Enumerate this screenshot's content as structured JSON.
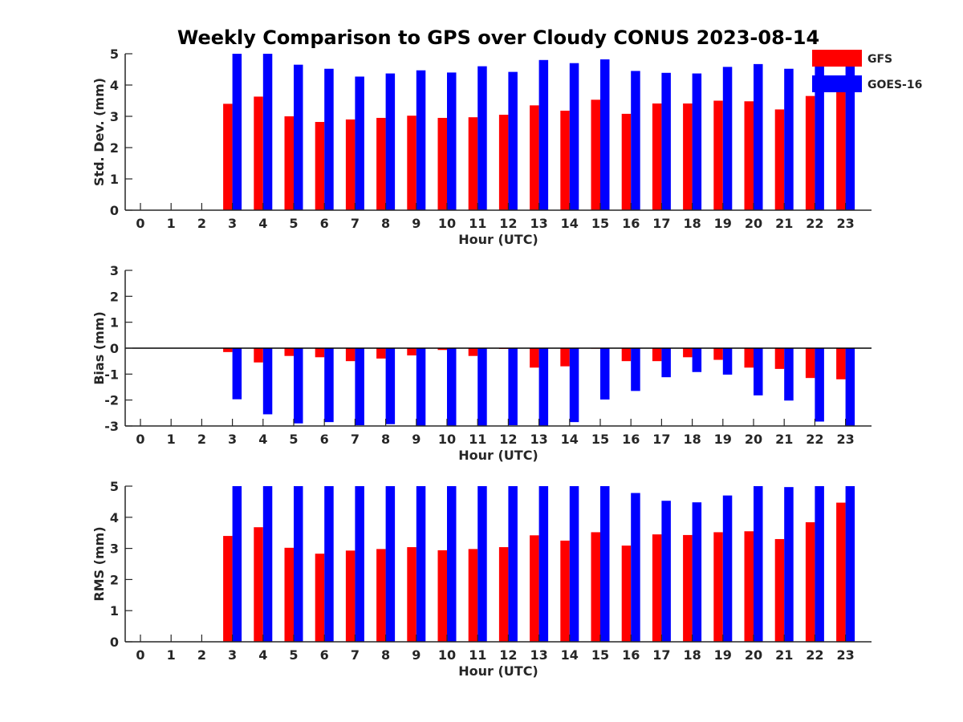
{
  "title": "Weekly Comparison to GPS over Cloudy CONUS 2023-08-14",
  "legend": {
    "placement": "top-right",
    "entries": [
      {
        "name": "GFS",
        "color": "#ff0000"
      },
      {
        "name": "GOES-16",
        "color": "#0000ff"
      }
    ]
  },
  "chart_data": [
    {
      "type": "bar",
      "title": "Weekly Comparison to GPS over Cloudy CONUS 2023-08-14",
      "xlabel": "Hour (UTC)",
      "ylabel": "Std. Dev. (mm)",
      "ylim": [
        0,
        5
      ],
      "yticks": [
        0,
        1,
        2,
        3,
        4,
        5
      ],
      "categories": [
        "0",
        "1",
        "2",
        "3",
        "4",
        "5",
        "6",
        "7",
        "8",
        "9",
        "10",
        "11",
        "12",
        "13",
        "14",
        "15",
        "16",
        "17",
        "18",
        "19",
        "20",
        "21",
        "22",
        "23"
      ],
      "series": [
        {
          "name": "GFS",
          "color": "#ff0000",
          "values": [
            0,
            0,
            0,
            3.4,
            3.63,
            3.0,
            2.82,
            2.9,
            2.95,
            3.02,
            2.95,
            2.97,
            3.05,
            3.35,
            3.18,
            3.53,
            3.08,
            3.41,
            3.41,
            3.5,
            3.48,
            3.22,
            3.65,
            3.8
          ]
        },
        {
          "name": "GOES-16",
          "color": "#0000ff",
          "values": [
            0,
            0,
            0,
            5.0,
            5.0,
            4.65,
            4.52,
            4.27,
            4.37,
            4.47,
            4.4,
            4.6,
            4.42,
            4.8,
            4.7,
            4.82,
            4.45,
            4.39,
            4.37,
            4.58,
            4.67,
            4.52,
            4.72,
            4.6
          ]
        }
      ],
      "grid": false
    },
    {
      "type": "bar",
      "xlabel": "Hour (UTC)",
      "ylabel": "Bias (mm)",
      "ylim": [
        -3,
        3
      ],
      "yticks": [
        -3,
        -2,
        -1,
        0,
        1,
        2,
        3
      ],
      "zero_line": true,
      "categories": [
        "0",
        "1",
        "2",
        "3",
        "4",
        "5",
        "6",
        "7",
        "8",
        "9",
        "10",
        "11",
        "12",
        "13",
        "14",
        "15",
        "16",
        "17",
        "18",
        "19",
        "20",
        "21",
        "22",
        "23"
      ],
      "series": [
        {
          "name": "GFS",
          "color": "#ff0000",
          "values": [
            0,
            0,
            0,
            -0.15,
            -0.55,
            -0.3,
            -0.35,
            -0.5,
            -0.4,
            -0.28,
            -0.07,
            -0.3,
            -0.03,
            -0.75,
            -0.7,
            -0.02,
            -0.5,
            -0.5,
            -0.35,
            -0.45,
            -0.75,
            -0.8,
            -1.15,
            -1.2
          ]
        },
        {
          "name": "GOES-16",
          "color": "#0000ff",
          "values": [
            0,
            0,
            0,
            -1.97,
            -2.55,
            -2.9,
            -2.85,
            -2.97,
            -2.93,
            -3.0,
            -3.0,
            -3.0,
            -2.97,
            -3.0,
            -2.85,
            -1.98,
            -1.65,
            -1.12,
            -0.92,
            -1.02,
            -1.82,
            -2.02,
            -2.83,
            -3.0
          ]
        }
      ],
      "grid": false
    },
    {
      "type": "bar",
      "xlabel": "Hour (UTC)",
      "ylabel": "RMS (mm)",
      "ylim": [
        0,
        5
      ],
      "yticks": [
        0,
        1,
        2,
        3,
        4,
        5
      ],
      "categories": [
        "0",
        "1",
        "2",
        "3",
        "4",
        "5",
        "6",
        "7",
        "8",
        "9",
        "10",
        "11",
        "12",
        "13",
        "14",
        "15",
        "16",
        "17",
        "18",
        "19",
        "20",
        "21",
        "22",
        "23"
      ],
      "series": [
        {
          "name": "GFS",
          "color": "#ff0000",
          "values": [
            0,
            0,
            0,
            3.4,
            3.68,
            3.02,
            2.83,
            2.93,
            2.98,
            3.04,
            2.94,
            2.98,
            3.04,
            3.42,
            3.25,
            3.52,
            3.09,
            3.45,
            3.43,
            3.52,
            3.55,
            3.3,
            3.84,
            4.47
          ]
        },
        {
          "name": "GOES-16",
          "color": "#0000ff",
          "values": [
            0,
            0,
            0,
            5.0,
            5.0,
            5.0,
            5.0,
            5.0,
            5.0,
            5.0,
            5.0,
            5.0,
            5.0,
            5.0,
            5.0,
            5.0,
            4.78,
            4.53,
            4.48,
            4.7,
            5.0,
            4.97,
            5.0,
            5.0
          ]
        }
      ],
      "grid": false
    }
  ]
}
